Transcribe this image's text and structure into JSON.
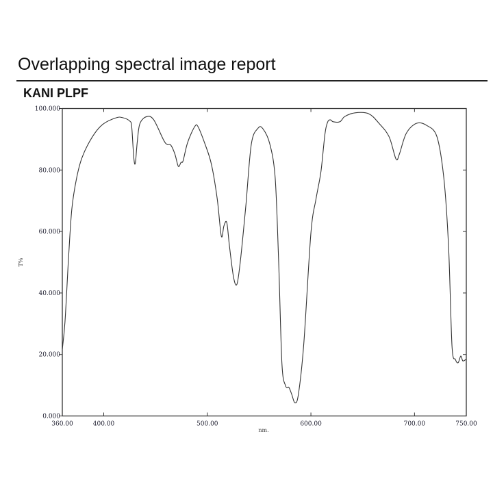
{
  "header": {
    "title": "Overlapping spectral image report"
  },
  "chart_data": {
    "type": "line",
    "title": "KANI PLPF",
    "xlabel": "nm.",
    "ylabel": "T%",
    "xlim": [
      360,
      750
    ],
    "ylim": [
      0,
      100
    ],
    "x_ticks": [
      360,
      400,
      500,
      600,
      700,
      750
    ],
    "x_tick_labels": [
      "360.00",
      "400.00",
      "500.00",
      "600.00",
      "700.00",
      "750.00"
    ],
    "y_ticks": [
      0,
      20,
      40,
      60,
      80,
      100
    ],
    "y_tick_labels": [
      "0.000",
      "20.000",
      "40.000",
      "60.000",
      "80.000",
      "100.000"
    ],
    "grid": false,
    "line_color": "#333333",
    "series": [
      {
        "x": [
          360,
          362.6,
          365.9,
          369.2,
          373.8,
          379.1,
          389,
          398.9,
          412,
          418.6,
          425.2,
          427,
          429,
          430.5,
          432.5,
          435,
          441.7,
          448.3,
          458,
          461.5,
          464.7,
          468.7,
          472,
          474.6,
          476.6,
          481,
          487.8,
          491,
          497.7,
          504,
          509.5,
          513.5,
          516,
          518.8,
          521.4,
          525.3,
          528.6,
          532,
          537.2,
          542.5,
          549,
          553.7,
          560.3,
          565.5,
          568.8,
          572,
          575.4,
          578.7,
          581.3,
          584.6,
          588,
          593.2,
          600,
          605,
          609.7,
          613.6,
          616.3,
          618.9,
          621.5,
          628,
          632.7,
          642.6,
          655.8,
          665.7,
          675.5,
          682.1,
          685.4,
          692,
          701.9,
          711.8,
          721.7,
          728.3,
          732.9,
          736.2,
          739.5,
          742.1,
          744.7,
          746.7,
          750
        ],
        "y": [
          21.7,
          30.6,
          50.7,
          67.3,
          77.4,
          84.1,
          90.8,
          94.8,
          97.0,
          97.0,
          95.9,
          94.0,
          84.0,
          82.3,
          89.6,
          95.2,
          97.4,
          96.3,
          89.6,
          88.3,
          88.1,
          85.2,
          81.2,
          82.5,
          83.0,
          89.0,
          94.1,
          94.1,
          88.5,
          81.8,
          70.7,
          58.5,
          61.8,
          62.9,
          55.1,
          45.1,
          42.9,
          50.7,
          68.5,
          88.5,
          93.6,
          93.4,
          88.5,
          77.4,
          50.7,
          17.2,
          9.9,
          9.3,
          7.2,
          4.3,
          7.2,
          23.9,
          59.6,
          70.7,
          79.6,
          91.9,
          95.7,
          96.3,
          95.7,
          95.7,
          97.4,
          98.6,
          98.3,
          95.2,
          90.8,
          83.6,
          85.2,
          91.9,
          95.2,
          94.5,
          90.8,
          77.4,
          55.1,
          22.8,
          18.4,
          17.3,
          19.5,
          17.9,
          18.5
        ]
      }
    ]
  }
}
